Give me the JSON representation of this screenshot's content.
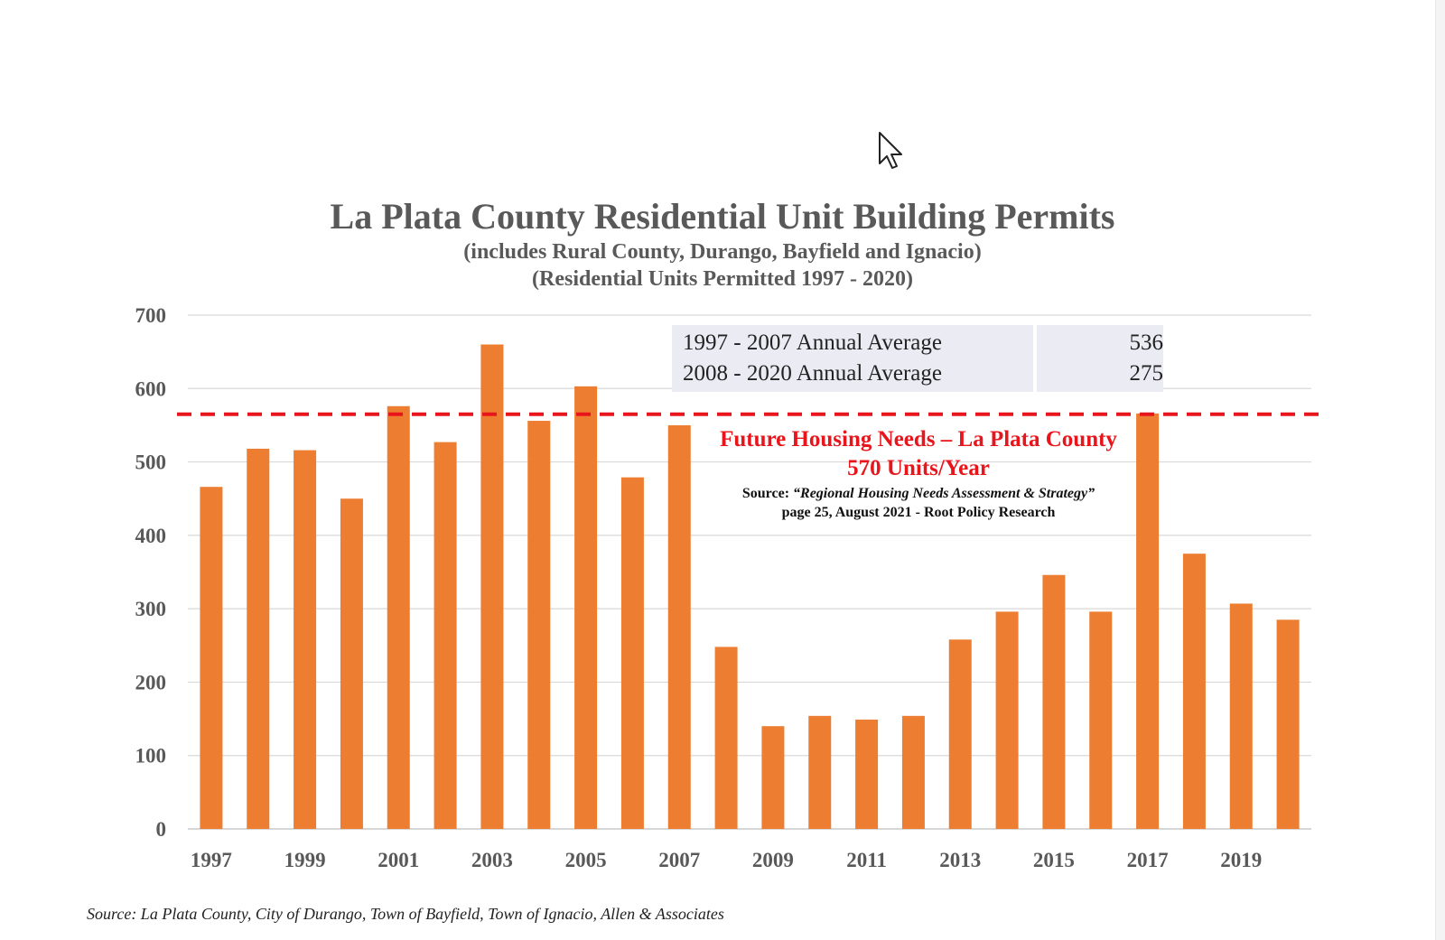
{
  "chart_data": {
    "type": "bar",
    "title": "La Plata County Residential Unit Building Permits",
    "subtitle": [
      "(includes Rural County, Durango, Bayfield and Ignacio)",
      "(Residential Units Permitted 1997 - 2020)"
    ],
    "categories": [
      "1997",
      "1998",
      "1999",
      "2000",
      "2001",
      "2002",
      "2003",
      "2004",
      "2005",
      "2006",
      "2007",
      "2008",
      "2009",
      "2010",
      "2011",
      "2012",
      "2013",
      "2014",
      "2015",
      "2016",
      "2017",
      "2018",
      "2019",
      "2020"
    ],
    "x_tick_labels": [
      "1997",
      "1999",
      "2001",
      "2003",
      "2005",
      "2007",
      "2009",
      "2011",
      "2013",
      "2015",
      "2017",
      "2019"
    ],
    "values": [
      466,
      518,
      516,
      450,
      576,
      527,
      660,
      556,
      603,
      479,
      550,
      248,
      140,
      154,
      149,
      154,
      258,
      296,
      346,
      296,
      566,
      375,
      307,
      285
    ],
    "ylim": [
      0,
      700
    ],
    "y_ticks": [
      0,
      100,
      200,
      300,
      400,
      500,
      600,
      700
    ],
    "bar_color": "#ed7d31",
    "grid": true,
    "reference_line": {
      "value": 565,
      "color": "#e8161c",
      "style": "dashed",
      "label_lines": [
        "Future Housing Needs – La Plata County",
        "570 Units/Year"
      ],
      "source_prefix": "Source: ",
      "source_title": "“Regional Housing Needs Assessment & Strategy”",
      "source_line2": "page 25, August 2021 - Root Policy Research"
    },
    "averages": [
      {
        "label": "1997 - 2007 Annual Average",
        "value": "536"
      },
      {
        "label": "2008 - 2020 Annual Average",
        "value": "275"
      }
    ]
  },
  "footer": "Source: La Plata County, City of Durango, Town of Bayfield, Town of Ignacio, Allen & Associates",
  "colors": {
    "title": "#595959",
    "tick": "#595959",
    "grid": "#d9d9d9",
    "table_bg": "#ebebf4"
  },
  "icons": {
    "cursor": "mouse-pointer-icon"
  }
}
